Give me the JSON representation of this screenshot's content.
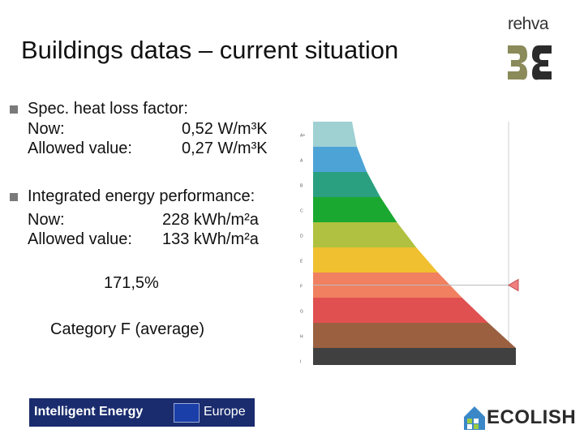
{
  "title": "Buildings datas – current situation",
  "brand": {
    "name": "rehva",
    "color": "#8a8a5a"
  },
  "bullets": [
    {
      "label": "Spec. heat loss factor:",
      "rows": [
        {
          "key": "Now:",
          "value": "0,52 W/m³K"
        },
        {
          "key": "Allowed value:",
          "value": "0,27 W/m³K"
        }
      ]
    },
    {
      "label": "Integrated energy performance:",
      "rows": [
        {
          "key": "Now:",
          "value": "228 kWh/m²a"
        },
        {
          "key": "Allowed value:",
          "value": "133 kWh/m²a"
        }
      ]
    }
  ],
  "percent": "171,5%",
  "category": "Category F (average)",
  "chart_data": {
    "type": "energy-label",
    "classes": [
      "A+",
      "A",
      "B",
      "C",
      "D",
      "E",
      "F",
      "G",
      "H",
      "I"
    ],
    "colors": [
      "#9fd0d2",
      "#4da3d6",
      "#2aa080",
      "#1aa830",
      "#b0c040",
      "#f0c030",
      "#f08060",
      "#e05050",
      "#9a6040",
      "#404040"
    ],
    "marker_class": "F",
    "marker_color": "#f08080"
  },
  "footer": {
    "ie_left": "Intelligent Energy",
    "ie_right": "Europe",
    "ecolish": "ECOLISH"
  }
}
